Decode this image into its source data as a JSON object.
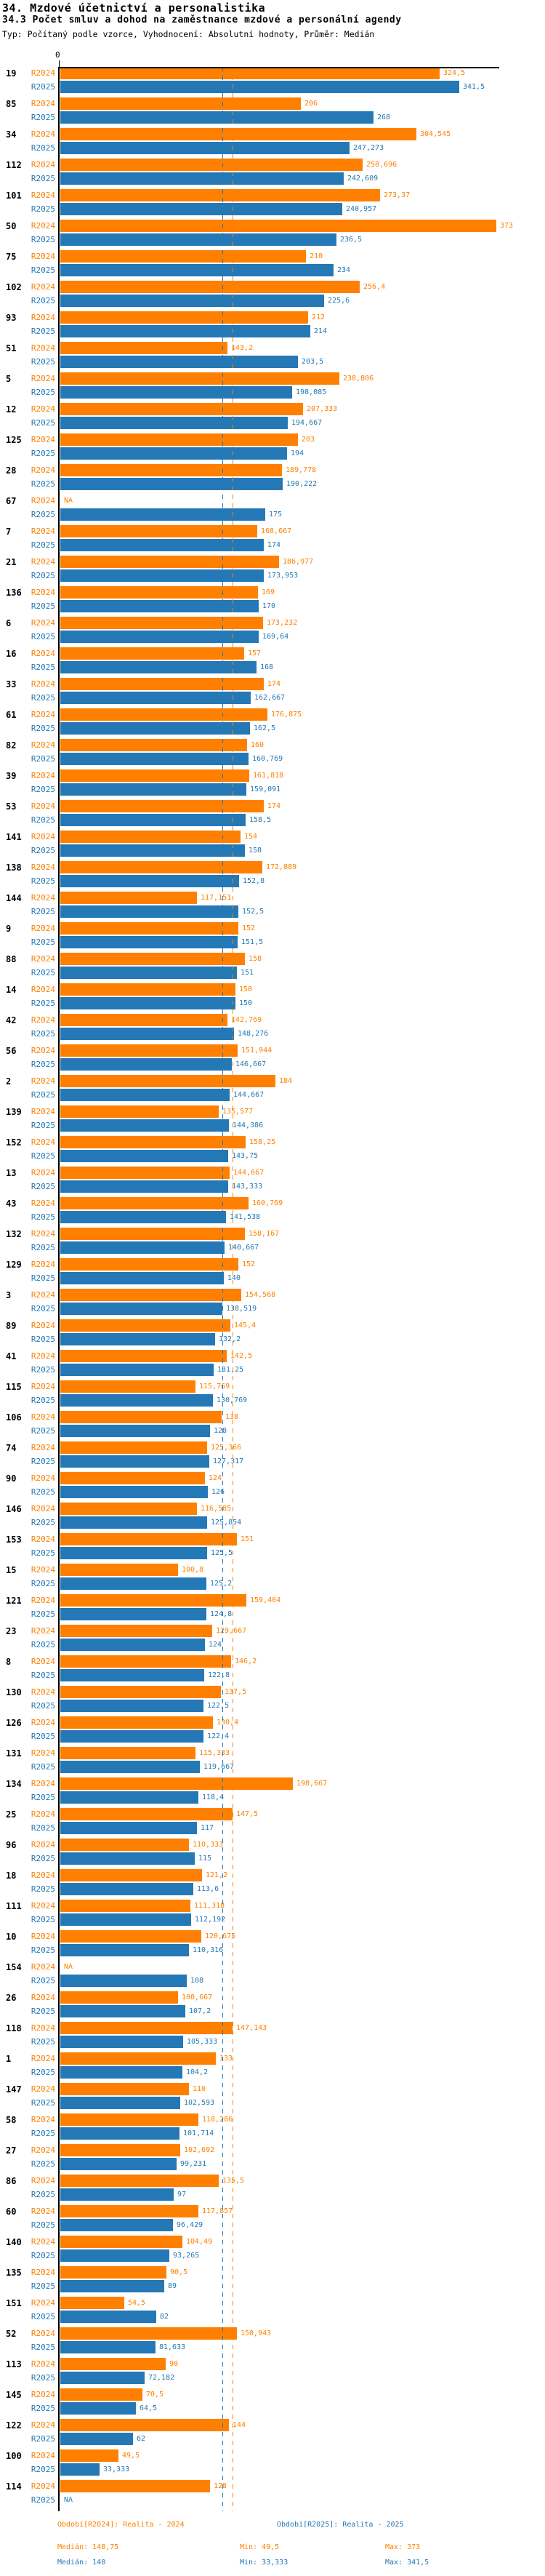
{
  "header": {
    "title": "34. Mzdové účetnictví a personalistika",
    "subtitle": "34.3 Počet smluv a dohod na zaměstnance mzdové a personální agendy",
    "meta": "Typ: Počítaný podle vzorce, Vyhodnocení: Absolutní hodnoty, Průměr: Medián"
  },
  "chart_data": {
    "type": "bar",
    "orientation": "horizontal",
    "title": "34.3 Počet smluv a dohod na zaměstnance mzdové a personální agendy",
    "xlabel": "",
    "ylabel": "",
    "xlim": [
      0,
      375
    ],
    "x_ticks": [
      "0"
    ],
    "grid": false,
    "legend_position": "bottom",
    "x_axis": {
      "tick_zero_label": "0"
    },
    "series_labels": {
      "r2024": "R2024",
      "r2025": "R2025"
    },
    "colors": {
      "r2024": "#ff8000",
      "r2025": "#2478b5"
    },
    "medians": {
      "r2024": 148.75,
      "r2025": 140
    },
    "rows": [
      {
        "category": "19",
        "r2024": "324,5",
        "r2025": "341,5"
      },
      {
        "category": "85",
        "r2024": "206",
        "r2025": "268"
      },
      {
        "category": "34",
        "r2024": "304,545",
        "r2025": "247,273"
      },
      {
        "category": "112",
        "r2024": "258,696",
        "r2025": "242,609"
      },
      {
        "category": "101",
        "r2024": "273,37",
        "r2025": "240,957"
      },
      {
        "category": "50",
        "r2024": "373",
        "r2025": "236,5"
      },
      {
        "category": "75",
        "r2024": "210",
        "r2025": "234"
      },
      {
        "category": "102",
        "r2024": "256,4",
        "r2025": "225,6"
      },
      {
        "category": "93",
        "r2024": "212",
        "r2025": "214"
      },
      {
        "category": "51",
        "r2024": "143,2",
        "r2025": "203,5"
      },
      {
        "category": "5",
        "r2024": "238,806",
        "r2025": "198,085"
      },
      {
        "category": "12",
        "r2024": "207,333",
        "r2025": "194,667"
      },
      {
        "category": "125",
        "r2024": "203",
        "r2025": "194"
      },
      {
        "category": "28",
        "r2024": "189,778",
        "r2025": "190,222"
      },
      {
        "category": "67",
        "r2024": "NA",
        "r2025": "175"
      },
      {
        "category": "7",
        "r2024": "168,667",
        "r2025": "174"
      },
      {
        "category": "21",
        "r2024": "186,977",
        "r2025": "173,953"
      },
      {
        "category": "136",
        "r2024": "169",
        "r2025": "170"
      },
      {
        "category": "6",
        "r2024": "173,232",
        "r2025": "169,64"
      },
      {
        "category": "16",
        "r2024": "157",
        "r2025": "168"
      },
      {
        "category": "33",
        "r2024": "174",
        "r2025": "162,667"
      },
      {
        "category": "61",
        "r2024": "176,875",
        "r2025": "162,5"
      },
      {
        "category": "82",
        "r2024": "160",
        "r2025": "160,769"
      },
      {
        "category": "39",
        "r2024": "161,818",
        "r2025": "159,091"
      },
      {
        "category": "53",
        "r2024": "174",
        "r2025": "158,5"
      },
      {
        "category": "141",
        "r2024": "154",
        "r2025": "158"
      },
      {
        "category": "138",
        "r2024": "172,889",
        "r2025": "152,8"
      },
      {
        "category": "144",
        "r2024": "117,151",
        "r2025": "152,5"
      },
      {
        "category": "9",
        "r2024": "152",
        "r2025": "151,5"
      },
      {
        "category": "88",
        "r2024": "158",
        "r2025": "151"
      },
      {
        "category": "14",
        "r2024": "150",
        "r2025": "150"
      },
      {
        "category": "42",
        "r2024": "142,769",
        "r2025": "148,276"
      },
      {
        "category": "56",
        "r2024": "151,944",
        "r2025": "146,667"
      },
      {
        "category": "2",
        "r2024": "184",
        "r2025": "144,667"
      },
      {
        "category": "139",
        "r2024": "135,577",
        "r2025": "144,386"
      },
      {
        "category": "152",
        "r2024": "158,25",
        "r2025": "143,75"
      },
      {
        "category": "13",
        "r2024": "144,667",
        "r2025": "143,333"
      },
      {
        "category": "43",
        "r2024": "160,769",
        "r2025": "141,538"
      },
      {
        "category": "132",
        "r2024": "158,167",
        "r2025": "140,667"
      },
      {
        "category": "129",
        "r2024": "152",
        "r2025": "140"
      },
      {
        "category": "3",
        "r2024": "154,568",
        "r2025": "138,519"
      },
      {
        "category": "89",
        "r2024": "145,4",
        "r2025": "132,2"
      },
      {
        "category": "41",
        "r2024": "142,5",
        "r2025": "131,25"
      },
      {
        "category": "115",
        "r2024": "115,769",
        "r2025": "130,769"
      },
      {
        "category": "106",
        "r2024": "138",
        "r2025": "128"
      },
      {
        "category": "74",
        "r2024": "125,366",
        "r2025": "127,317"
      },
      {
        "category": "90",
        "r2024": "124",
        "r2025": "126"
      },
      {
        "category": "146",
        "r2024": "116,585",
        "r2025": "125,854"
      },
      {
        "category": "153",
        "r2024": "151",
        "r2025": "125,5"
      },
      {
        "category": "15",
        "r2024": "100,8",
        "r2025": "125,2"
      },
      {
        "category": "121",
        "r2024": "159,404",
        "r2025": "124,8"
      },
      {
        "category": "23",
        "r2024": "129,667",
        "r2025": "124"
      },
      {
        "category": "8",
        "r2024": "146,2",
        "r2025": "122,8"
      },
      {
        "category": "130",
        "r2024": "137,5",
        "r2025": "122,5"
      },
      {
        "category": "126",
        "r2024": "130,4",
        "r2025": "122,4"
      },
      {
        "category": "131",
        "r2024": "115,333",
        "r2025": "119,667"
      },
      {
        "category": "134",
        "r2024": "198,667",
        "r2025": "118,4"
      },
      {
        "category": "25",
        "r2024": "147,5",
        "r2025": "117"
      },
      {
        "category": "96",
        "r2024": "110,333",
        "r2025": "115"
      },
      {
        "category": "18",
        "r2024": "121,2",
        "r2025": "113,6"
      },
      {
        "category": "111",
        "r2024": "111,318",
        "r2025": "112,192"
      },
      {
        "category": "10",
        "r2024": "120,675",
        "r2025": "110,316"
      },
      {
        "category": "154",
        "r2024": "NA",
        "r2025": "108"
      },
      {
        "category": "26",
        "r2024": "100,667",
        "r2025": "107,2"
      },
      {
        "category": "118",
        "r2024": "147,143",
        "r2025": "105,333"
      },
      {
        "category": "1",
        "r2024": "133",
        "r2025": "104,2"
      },
      {
        "category": "147",
        "r2024": "110",
        "r2025": "102,593"
      },
      {
        "category": "58",
        "r2024": "118,286",
        "r2025": "101,714"
      },
      {
        "category": "27",
        "r2024": "102,692",
        "r2025": "99,231"
      },
      {
        "category": "86",
        "r2024": "135,5",
        "r2025": "97"
      },
      {
        "category": "60",
        "r2024": "117,857",
        "r2025": "96,429"
      },
      {
        "category": "140",
        "r2024": "104,49",
        "r2025": "93,265"
      },
      {
        "category": "135",
        "r2024": "90,5",
        "r2025": "89"
      },
      {
        "category": "151",
        "r2024": "54,5",
        "r2025": "82"
      },
      {
        "category": "52",
        "r2024": "150,943",
        "r2025": "81,633"
      },
      {
        "category": "113",
        "r2024": "90",
        "r2025": "72,182"
      },
      {
        "category": "145",
        "r2024": "70,5",
        "r2025": "64,5"
      },
      {
        "category": "122",
        "r2024": "144",
        "r2025": "62"
      },
      {
        "category": "100",
        "r2024": "49,5",
        "r2025": "33,333"
      },
      {
        "category": "114",
        "r2024": "128",
        "r2025": "NA"
      }
    ]
  },
  "legend": {
    "r2024": {
      "title": "Období[R2024]: Realita - 2024",
      "median": "Medián: 148,75",
      "min": "Min: 49,5",
      "max": "Max: 373"
    },
    "r2025": {
      "title": "Období[R2025]: Realita - 2025",
      "median": "Medián: 140",
      "min": "Min: 33,333",
      "max": "Max: 341,5"
    }
  }
}
